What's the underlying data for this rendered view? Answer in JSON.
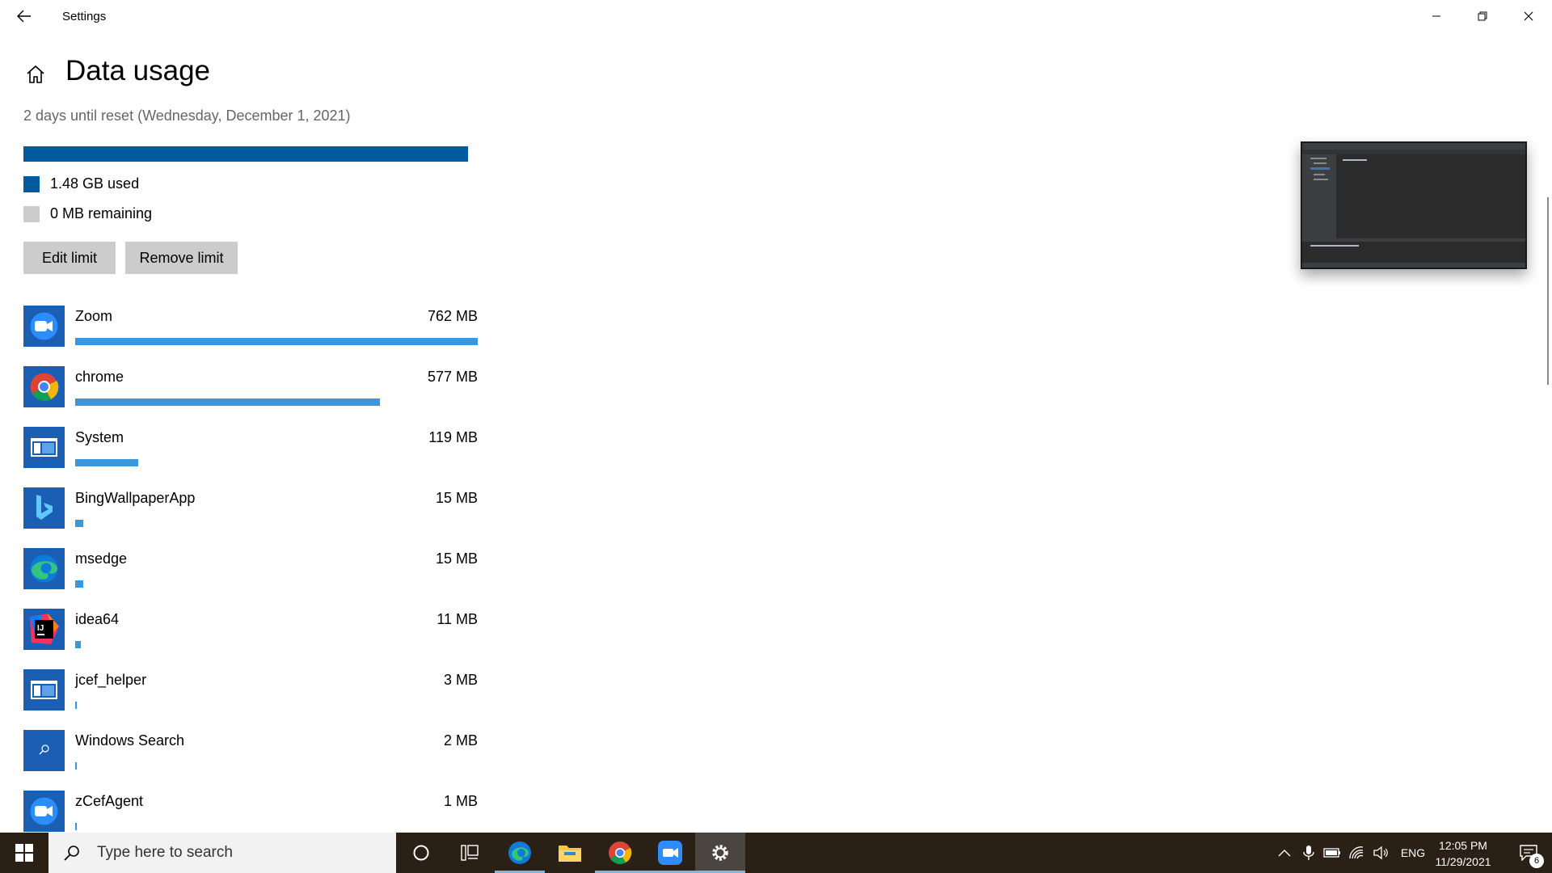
{
  "window": {
    "title": "Settings"
  },
  "page": {
    "title": "Data usage",
    "reset_text": "2 days until reset (Wednesday, December 1, 2021)"
  },
  "usage": {
    "used_fraction": 1.0,
    "used_label": "1.48 GB used",
    "remaining_label": "0 MB remaining",
    "used_color": "#005a9e",
    "remaining_color": "#cccccc"
  },
  "buttons": {
    "edit_limit": "Edit limit",
    "remove_limit": "Remove limit"
  },
  "apps": [
    {
      "name": "Zoom",
      "size": "762 MB",
      "fraction": 1.0,
      "icon": "zoom-icon"
    },
    {
      "name": "chrome",
      "size": "577 MB",
      "fraction": 0.757,
      "icon": "chrome-icon"
    },
    {
      "name": "System",
      "size": "119 MB",
      "fraction": 0.156,
      "icon": "system-window-icon"
    },
    {
      "name": "BingWallpaperApp",
      "size": "15 MB",
      "fraction": 0.02,
      "icon": "bing-icon"
    },
    {
      "name": "msedge",
      "size": "15 MB",
      "fraction": 0.02,
      "icon": "edge-icon"
    },
    {
      "name": "idea64",
      "size": "11 MB",
      "fraction": 0.014,
      "icon": "intellij-icon"
    },
    {
      "name": "jcef_helper",
      "size": "3 MB",
      "fraction": 0.004,
      "icon": "system-window-icon"
    },
    {
      "name": "Windows Search",
      "size": "2 MB",
      "fraction": 0.003,
      "icon": "search-icon"
    },
    {
      "name": "zCefAgent",
      "size": "1 MB",
      "fraction": 0.0013,
      "icon": "zoom-icon"
    }
  ],
  "taskbar": {
    "search_placeholder": "Type here to search",
    "language": "ENG",
    "time": "12:05 PM",
    "date": "11/29/2021",
    "notification_count": "6",
    "background": "#2b2016"
  }
}
